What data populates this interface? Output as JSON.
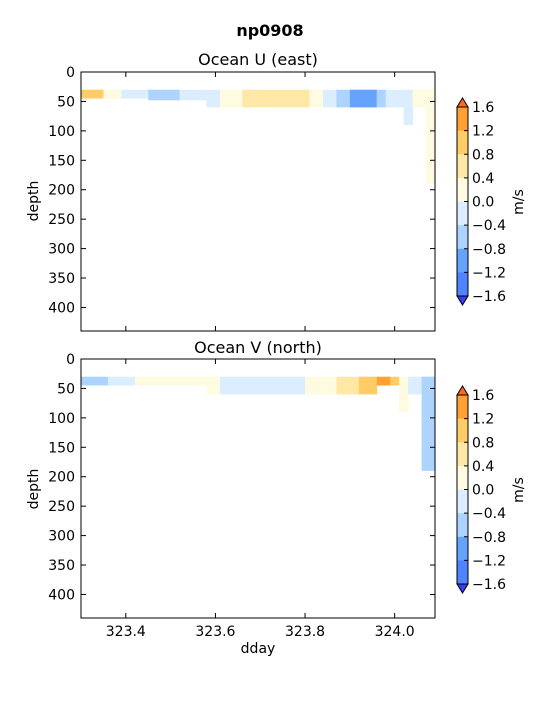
{
  "figure": {
    "suptitle": "np0908"
  },
  "colorbar": {
    "levels": [
      -1.6,
      -1.2,
      -0.8,
      -0.4,
      0.0,
      0.4,
      0.8,
      1.2,
      1.6
    ],
    "tick_labels": [
      "−1.6",
      "−1.2",
      "−0.8",
      "−0.4",
      "0.0",
      "0.4",
      "0.8",
      "1.2",
      "1.6"
    ],
    "colors": [
      "#3a3aff",
      "#4f84ff",
      "#66a3ff",
      "#acd4ff",
      "#daeeff",
      "#fffbe0",
      "#ffe8a6",
      "#ffcc66",
      "#ffa033",
      "#ff6a1a"
    ],
    "label": "m/s"
  },
  "chart_data": [
    {
      "type": "heatmap",
      "title": "Ocean U (east)",
      "ylabel": "depth",
      "xlabel": "",
      "xlim": [
        323.3,
        324.09
      ],
      "ylim": [
        440,
        0
      ],
      "yticks": [
        "0",
        "50",
        "100",
        "150",
        "200",
        "250",
        "300",
        "350",
        "400"
      ],
      "xticks": [
        "323.4",
        "323.6",
        "323.8",
        "324.0"
      ],
      "cells": [
        {
          "x0": 323.3,
          "x1": 323.35,
          "y0": 30,
          "y1": 45,
          "level": 7
        },
        {
          "x0": 323.35,
          "x1": 323.39,
          "y0": 30,
          "y1": 45,
          "level": 5
        },
        {
          "x0": 323.39,
          "x1": 323.45,
          "y0": 30,
          "y1": 45,
          "level": 4
        },
        {
          "x0": 323.45,
          "x1": 323.52,
          "y0": 30,
          "y1": 48,
          "level": 3
        },
        {
          "x0": 323.52,
          "x1": 323.58,
          "y0": 30,
          "y1": 48,
          "level": 4
        },
        {
          "x0": 323.58,
          "x1": 323.61,
          "y0": 30,
          "y1": 60,
          "level": 4
        },
        {
          "x0": 323.61,
          "x1": 323.66,
          "y0": 30,
          "y1": 60,
          "level": 5
        },
        {
          "x0": 323.66,
          "x1": 323.81,
          "y0": 30,
          "y1": 60,
          "level": 6
        },
        {
          "x0": 323.81,
          "x1": 323.84,
          "y0": 30,
          "y1": 60,
          "level": 5
        },
        {
          "x0": 323.84,
          "x1": 323.87,
          "y0": 30,
          "y1": 60,
          "level": 4
        },
        {
          "x0": 323.87,
          "x1": 323.9,
          "y0": 30,
          "y1": 60,
          "level": 3
        },
        {
          "x0": 323.9,
          "x1": 323.96,
          "y0": 30,
          "y1": 60,
          "level": 2
        },
        {
          "x0": 323.96,
          "x1": 323.98,
          "y0": 30,
          "y1": 60,
          "level": 3
        },
        {
          "x0": 323.98,
          "x1": 324.02,
          "y0": 30,
          "y1": 60,
          "level": 4
        },
        {
          "x0": 324.02,
          "x1": 324.04,
          "y0": 30,
          "y1": 90,
          "level": 4
        },
        {
          "x0": 324.04,
          "x1": 324.07,
          "y0": 30,
          "y1": 60,
          "level": 5
        },
        {
          "x0": 324.07,
          "x1": 324.09,
          "y0": 30,
          "y1": 190,
          "level": 5
        }
      ]
    },
    {
      "type": "heatmap",
      "title": "Ocean V (north)",
      "ylabel": "depth",
      "xlabel": "dday",
      "xlim": [
        323.3,
        324.09
      ],
      "ylim": [
        440,
        0
      ],
      "yticks": [
        "0",
        "50",
        "100",
        "150",
        "200",
        "250",
        "300",
        "350",
        "400"
      ],
      "xticks": [
        "323.4",
        "323.6",
        "323.8",
        "324.0"
      ],
      "cells": [
        {
          "x0": 323.3,
          "x1": 323.36,
          "y0": 30,
          "y1": 45,
          "level": 3
        },
        {
          "x0": 323.36,
          "x1": 323.42,
          "y0": 30,
          "y1": 45,
          "level": 4
        },
        {
          "x0": 323.42,
          "x1": 323.58,
          "y0": 30,
          "y1": 45,
          "level": 5
        },
        {
          "x0": 323.58,
          "x1": 323.61,
          "y0": 30,
          "y1": 60,
          "level": 5
        },
        {
          "x0": 323.61,
          "x1": 323.8,
          "y0": 30,
          "y1": 60,
          "level": 4
        },
        {
          "x0": 323.8,
          "x1": 323.87,
          "y0": 30,
          "y1": 60,
          "level": 5
        },
        {
          "x0": 323.87,
          "x1": 323.92,
          "y0": 30,
          "y1": 60,
          "level": 6
        },
        {
          "x0": 323.92,
          "x1": 323.96,
          "y0": 30,
          "y1": 60,
          "level": 7
        },
        {
          "x0": 323.96,
          "x1": 323.99,
          "y0": 30,
          "y1": 45,
          "level": 8
        },
        {
          "x0": 323.99,
          "x1": 324.01,
          "y0": 30,
          "y1": 45,
          "level": 7
        },
        {
          "x0": 324.01,
          "x1": 324.03,
          "y0": 30,
          "y1": 90,
          "level": 5
        },
        {
          "x0": 324.03,
          "x1": 324.06,
          "y0": 30,
          "y1": 60,
          "level": 4
        },
        {
          "x0": 324.06,
          "x1": 324.09,
          "y0": 30,
          "y1": 190,
          "level": 3
        }
      ]
    }
  ]
}
